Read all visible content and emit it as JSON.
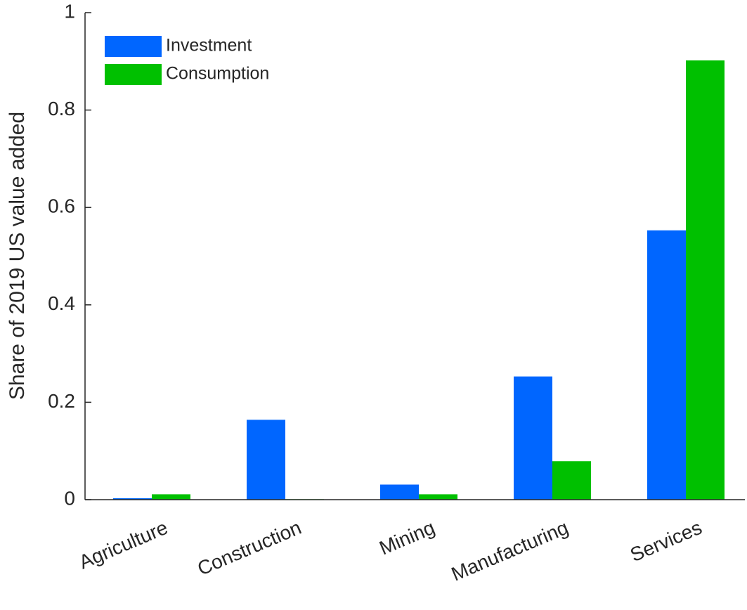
{
  "chart_data": {
    "type": "bar",
    "y_label": "Share of 2019 US value added",
    "categories": [
      "Agriculture",
      "Construction",
      "Mining",
      "Manufacturing",
      "Services"
    ],
    "series": [
      {
        "name": "Investment",
        "color": "#0066ff",
        "values": [
          0.003,
          0.164,
          0.031,
          0.253,
          0.553
        ]
      },
      {
        "name": "Consumption",
        "color": "#00c000",
        "values": [
          0.011,
          0.001,
          0.011,
          0.079,
          0.902
        ]
      }
    ],
    "ylim": [
      0,
      1
    ],
    "yticks": [
      0,
      0.2,
      0.4,
      0.6,
      0.8,
      1
    ],
    "legend": "upper-left"
  }
}
